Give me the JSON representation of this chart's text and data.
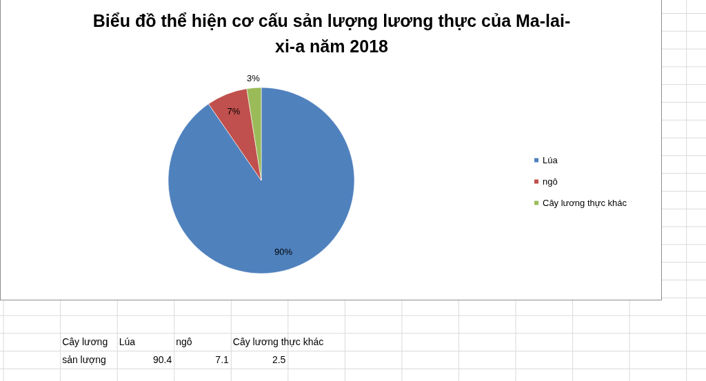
{
  "chart_data": [
    {
      "type": "pie",
      "title": "Biểu đồ thể hiện cơ cấu sản lượng lương thực của Ma-lai-xi-a năm 2018",
      "categories": [
        "Lúa",
        "ngô",
        "Cây lương thực khác"
      ],
      "values": [
        90.4,
        7.1,
        2.5
      ],
      "colors": [
        "#4f81bd",
        "#c0504d",
        "#9bbb59"
      ],
      "value_labels": [
        "90%",
        "7%",
        "3%"
      ],
      "legend": "right"
    },
    {
      "type": "other",
      "annotations": [
        "Cây lương",
        "Lúa",
        "ngô",
        "Cây lương thực khác",
        "sản lượng",
        "90.4",
        "7.1",
        "2.5"
      ]
    }
  ]
}
